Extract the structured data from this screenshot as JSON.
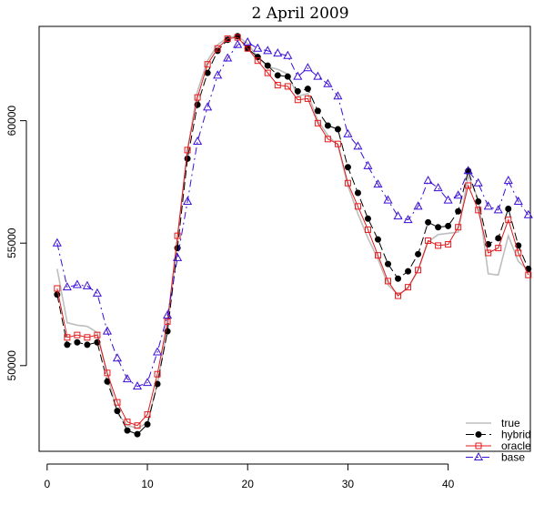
{
  "chart_data": {
    "type": "line",
    "title": "2 April 2009",
    "xlabel": "",
    "ylabel": "",
    "xlim": [
      -0.8,
      48.2
    ],
    "ylim": [
      46500,
      63850
    ],
    "x_ticks": [
      0,
      10,
      20,
      30,
      40
    ],
    "y_ticks": [
      50000,
      55000,
      60000
    ],
    "legend": {
      "position": "bottom-right"
    },
    "x": [
      1,
      2,
      3,
      4,
      5,
      6,
      7,
      8,
      9,
      10,
      11,
      12,
      13,
      14,
      15,
      16,
      17,
      18,
      19,
      20,
      21,
      22,
      23,
      24,
      25,
      26,
      27,
      28,
      29,
      30,
      31,
      32,
      33,
      34,
      35,
      36,
      37,
      38,
      39,
      40,
      41,
      42,
      43,
      44,
      45,
      46,
      47,
      48
    ],
    "series": [
      {
        "name": "true",
        "color": "#bebebe",
        "marker": "none",
        "dash": "solid",
        "values": [
          53950,
          51750,
          51650,
          51600,
          51350,
          49650,
          48050,
          47550,
          47450,
          47650,
          49250,
          51550,
          55150,
          58800,
          61200,
          62450,
          63100,
          63400,
          63450,
          63150,
          62600,
          62200,
          62100,
          61900,
          61000,
          61100,
          60000,
          59400,
          59000,
          57350,
          56200,
          55200,
          54350,
          53300,
          52900,
          53150,
          53900,
          55050,
          55350,
          55400,
          55450,
          57750,
          56800,
          53750,
          53700,
          55300,
          54250,
          53900
        ]
      },
      {
        "name": "hybrid",
        "color": "#000000",
        "marker": "filled-circle",
        "dash": "longdash",
        "values": [
          52900,
          50850,
          50950,
          50850,
          50950,
          49350,
          48150,
          47350,
          47200,
          47600,
          49250,
          51400,
          54800,
          58450,
          60650,
          61950,
          62850,
          63300,
          63450,
          62950,
          62600,
          62250,
          61850,
          61800,
          61200,
          61300,
          60400,
          59800,
          59650,
          58100,
          57050,
          56000,
          55150,
          54150,
          53550,
          53850,
          54550,
          55850,
          55650,
          55700,
          56300,
          57950,
          56700,
          54950,
          55200,
          56400,
          54900,
          53950
        ]
      },
      {
        "name": "oracle",
        "color": "#e31a1c",
        "marker": "open-square",
        "dash": "solid",
        "values": [
          53150,
          51150,
          51250,
          51150,
          51250,
          49700,
          48500,
          47700,
          47550,
          48000,
          49650,
          51800,
          55300,
          58800,
          60950,
          62300,
          62950,
          63350,
          63400,
          62950,
          62450,
          61950,
          61450,
          61400,
          60850,
          60900,
          59900,
          59250,
          59050,
          57450,
          56500,
          55550,
          54500,
          53450,
          52850,
          53200,
          53900,
          55100,
          54900,
          54950,
          55650,
          57350,
          56350,
          54600,
          54800,
          55950,
          54600,
          53700
        ]
      },
      {
        "name": "base",
        "color": "#3a0dd8",
        "marker": "open-triangle",
        "dash": "dashdot",
        "values": [
          55000,
          53200,
          53300,
          53250,
          52950,
          51400,
          50300,
          49450,
          49150,
          49300,
          50550,
          52050,
          54400,
          56700,
          59150,
          60550,
          61850,
          62550,
          63100,
          63200,
          62950,
          62850,
          62750,
          62650,
          61800,
          62150,
          61800,
          61500,
          61000,
          59450,
          58950,
          58150,
          57400,
          56750,
          56100,
          55950,
          56500,
          57550,
          57250,
          56750,
          56950,
          57950,
          57450,
          56500,
          56350,
          57550,
          56700,
          56150
        ]
      }
    ]
  }
}
